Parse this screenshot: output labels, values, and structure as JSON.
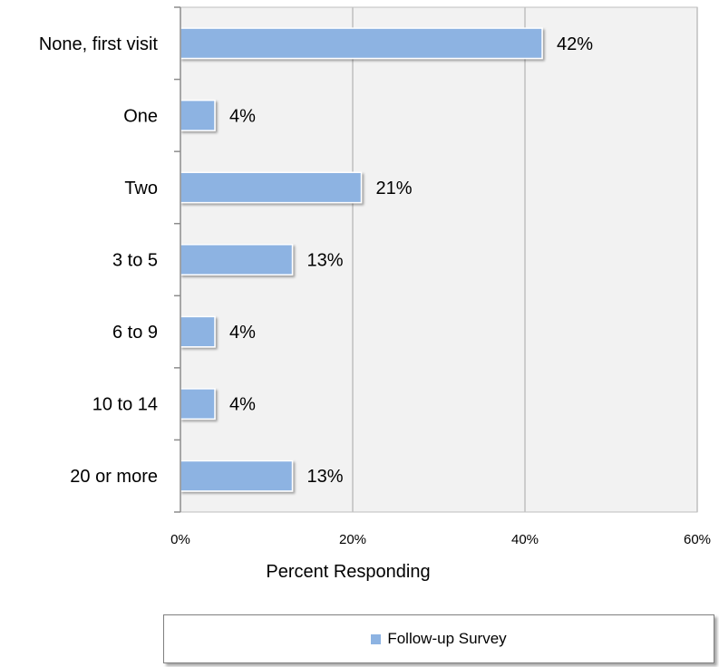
{
  "chart_data": {
    "type": "bar",
    "orientation": "horizontal",
    "categories": [
      "None, first visit",
      "One",
      "Two",
      "3 to 5",
      "6 to 9",
      "10 to 14",
      "20 or more"
    ],
    "series": [
      {
        "name": "Follow-up Survey",
        "values": [
          42,
          4,
          21,
          13,
          4,
          4,
          13
        ],
        "color": "#8db3e2"
      }
    ],
    "data_labels": [
      "42%",
      "4%",
      "21%",
      "13%",
      "4%",
      "4%",
      "13%"
    ],
    "xlabel": "Percent Responding",
    "xlim": [
      0,
      60
    ],
    "xticks": [
      0,
      20,
      40,
      60
    ],
    "xtick_labels": [
      "0%",
      "20%",
      "40%",
      "60%"
    ],
    "grid": "vertical",
    "legend": {
      "position": "bottom"
    },
    "colors": {
      "plot_bg": "#f2f2f2",
      "gridline": "#bfbfbf",
      "bar": "#8db3e2"
    }
  }
}
